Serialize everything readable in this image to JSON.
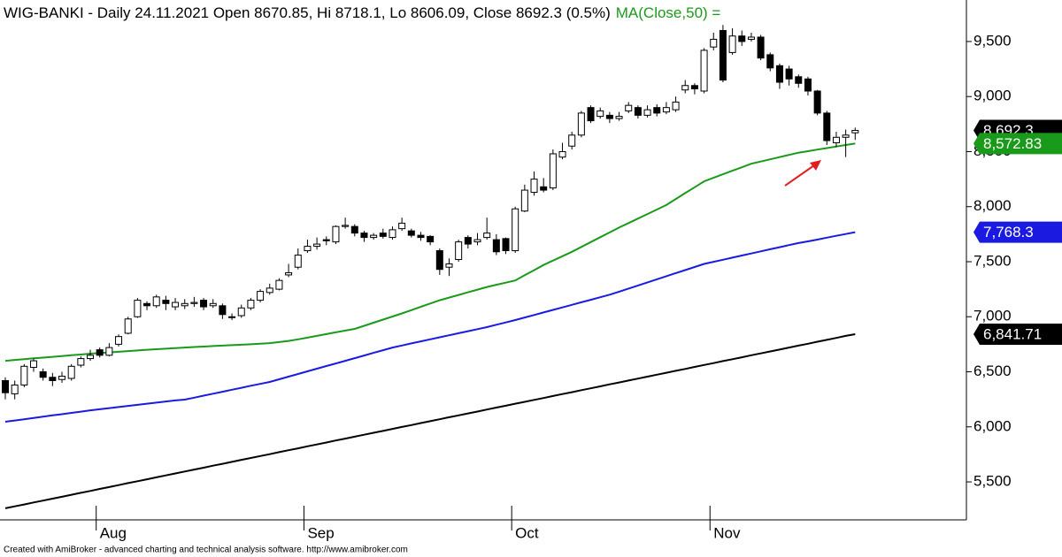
{
  "chart_data": {
    "type": "candlestick",
    "title": "WIG-BANKI - Daily 24.11.2021 Open 8670.85, Hi 8718.1, Lo 8606.09, Close 8692.3 (0.5%)",
    "title_ma": "MA(Close,50) =",
    "footer": "Created with AmiBroker - advanced charting and technical analysis software. http://www.amibroker.com",
    "categories": [
      null,
      null,
      null,
      null,
      null,
      null,
      null,
      null,
      null,
      null,
      "Aug",
      null,
      null,
      null,
      null,
      null,
      null,
      null,
      null,
      null,
      null,
      null,
      null,
      null,
      null,
      null,
      null,
      null,
      null,
      null,
      null,
      null,
      "Sep",
      null,
      null,
      null,
      null,
      null,
      null,
      null,
      null,
      null,
      null,
      null,
      null,
      null,
      null,
      null,
      null,
      null,
      null,
      null,
      null,
      null,
      "Oct",
      null,
      null,
      null,
      null,
      null,
      null,
      null,
      null,
      null,
      null,
      null,
      null,
      null,
      null,
      null,
      null,
      null,
      null,
      null,
      null,
      "Nov",
      null,
      null,
      null,
      null,
      null,
      null,
      null,
      null,
      null,
      null,
      null,
      null,
      null,
      null,
      null
    ],
    "open": [
      6420,
      6300,
      6380,
      6540,
      6500,
      6450,
      6430,
      6440,
      6560,
      6620,
      6700,
      6650,
      6750,
      6850,
      7000,
      7120,
      7100,
      7150,
      7090,
      7100,
      7120,
      7150,
      7100,
      7100,
      7000,
      7010,
      7080,
      7150,
      7220,
      7250,
      7380,
      7450,
      7600,
      7640,
      7700,
      7680,
      7820,
      7820,
      7760,
      7720,
      7760,
      7720,
      7800,
      7780,
      7740,
      7730,
      7600,
      7450,
      7520,
      7720,
      7680,
      7720,
      7700,
      7710,
      7600,
      7960,
      8130,
      8180,
      8170,
      8450,
      8550,
      8650,
      8900,
      8820,
      8830,
      8800,
      8870,
      8900,
      8830,
      8900,
      8860,
      8880,
      9060,
      9100,
      9050,
      9450,
      9600,
      9400,
      9550,
      9520,
      9540,
      9380,
      9280,
      9250,
      9180,
      9160,
      9050,
      8850,
      8580,
      8630,
      8670.85
    ],
    "high": [
      6450,
      6420,
      6570,
      6620,
      6530,
      6490,
      6500,
      6570,
      6640,
      6700,
      6720,
      6760,
      6840,
      7000,
      7170,
      7140,
      7200,
      7190,
      7170,
      7160,
      7180,
      7170,
      7160,
      7120,
      7030,
      7110,
      7170,
      7250,
      7300,
      7350,
      7480,
      7620,
      7700,
      7720,
      7730,
      7830,
      7900,
      7840,
      7780,
      7760,
      7800,
      7820,
      7900,
      7800,
      7770,
      7740,
      7620,
      7530,
      7700,
      7740,
      7760,
      7900,
      7750,
      7720,
      8000,
      8200,
      8320,
      8260,
      8520,
      8580,
      8680,
      8870,
      8920,
      8900,
      8860,
      8860,
      8950,
      8920,
      8920,
      8930,
      8950,
      9000,
      9150,
      9120,
      9440,
      9580,
      9650,
      9620,
      9600,
      9580,
      9560,
      9400,
      9300,
      9280,
      9200,
      9180,
      9060,
      8870,
      8680,
      8700,
      8718.1
    ],
    "low": [
      6250,
      6250,
      6360,
      6500,
      6420,
      6370,
      6400,
      6420,
      6540,
      6600,
      6630,
      6640,
      6730,
      6840,
      6990,
      7060,
      7080,
      7060,
      7060,
      7070,
      7090,
      7060,
      7080,
      6980,
      6970,
      6990,
      7060,
      7130,
      7200,
      7240,
      7360,
      7430,
      7580,
      7610,
      7650,
      7660,
      7800,
      7730,
      7680,
      7700,
      7710,
      7700,
      7780,
      7720,
      7690,
      7650,
      7380,
      7370,
      7500,
      7620,
      7650,
      7700,
      7560,
      7570,
      7580,
      7950,
      8100,
      8130,
      8150,
      8430,
      8520,
      8630,
      8760,
      8800,
      8760,
      8780,
      8850,
      8800,
      8810,
      8820,
      8840,
      8860,
      9030,
      9020,
      9030,
      9420,
      9130,
      9380,
      9460,
      9500,
      9330,
      9230,
      9070,
      9100,
      9080,
      9010,
      8830,
      8560,
      8540,
      8450,
      8606.09
    ],
    "close": [
      6310,
      6380,
      6550,
      6600,
      6450,
      6420,
      6460,
      6550,
      6620,
      6650,
      6650,
      6720,
      6820,
      6980,
      7150,
      7100,
      7180,
      7120,
      7130,
      7120,
      7130,
      7090,
      7120,
      7020,
      7000,
      7080,
      7150,
      7230,
      7260,
      7330,
      7400,
      7560,
      7640,
      7660,
      7690,
      7820,
      7830,
      7760,
      7720,
      7740,
      7730,
      7790,
      7850,
      7740,
      7720,
      7680,
      7430,
      7480,
      7680,
      7660,
      7700,
      7760,
      7590,
      7600,
      7980,
      8150,
      8250,
      8150,
      8480,
      8500,
      8650,
      8850,
      8780,
      8870,
      8800,
      8820,
      8920,
      8830,
      8880,
      8850,
      8900,
      8950,
      9100,
      9070,
      9420,
      9520,
      9150,
      9550,
      9500,
      9540,
      9350,
      9260,
      9130,
      9160,
      9120,
      9050,
      8850,
      8600,
      8630,
      8650,
      8692.3
    ],
    "close_label": "8,692.3",
    "up_color": "#ffffff",
    "down_color": "#000000",
    "series": [
      {
        "color": "#1a9a1a",
        "last_label": "8,572.83",
        "values": [
          6600,
          6608,
          6615,
          6622,
          6629,
          6636,
          6643,
          6650,
          6657,
          6665,
          6670,
          6676,
          6682,
          6688,
          6694,
          6700,
          6705,
          6710,
          6715,
          6720,
          6725,
          6729,
          6734,
          6738,
          6742,
          6746,
          6750,
          6755,
          6760,
          6770,
          6780,
          6795,
          6810,
          6826,
          6842,
          6858,
          6874,
          6890,
          6918,
          6946,
          6974,
          7002,
          7030,
          7060,
          7090,
          7120,
          7150,
          7174,
          7198,
          7222,
          7246,
          7270,
          7290,
          7310,
          7330,
          7377,
          7423,
          7470,
          7510,
          7550,
          7590,
          7634,
          7678,
          7722,
          7766,
          7810,
          7851,
          7892,
          7933,
          7974,
          8015,
          8069,
          8123,
          8176,
          8230,
          8262,
          8294,
          8326,
          8358,
          8390,
          8410,
          8430,
          8450,
          8470,
          8490,
          8504,
          8518,
          8532,
          8546,
          8560,
          8572.83
        ]
      },
      {
        "color": "#1a1ae0",
        "last_label": "7,768.3",
        "values": [
          6046,
          6058,
          6069,
          6081,
          6092,
          6104,
          6115,
          6127,
          6138,
          6150,
          6160,
          6170,
          6180,
          6190,
          6200,
          6210,
          6220,
          6230,
          6240,
          6247,
          6265,
          6283,
          6301,
          6319,
          6337,
          6355,
          6373,
          6390,
          6408,
          6432,
          6456,
          6480,
          6504,
          6528,
          6552,
          6576,
          6600,
          6624,
          6648,
          6672,
          6696,
          6720,
          6739,
          6758,
          6776,
          6795,
          6813,
          6832,
          6850,
          6869,
          6887,
          6906,
          6927,
          6948,
          6970,
          6993,
          7016,
          7039,
          7062,
          7085,
          7108,
          7131,
          7154,
          7177,
          7200,
          7228,
          7256,
          7284,
          7312,
          7340,
          7368,
          7396,
          7424,
          7452,
          7480,
          7499,
          7518,
          7537,
          7556,
          7575,
          7594,
          7613,
          7632,
          7651,
          7669,
          7685,
          7701,
          7718,
          7735,
          7751,
          7768.3
        ]
      },
      {
        "color": "#000000",
        "last_label": "6,841.71",
        "values": [
          5260,
          5278,
          5295,
          5313,
          5330,
          5348,
          5365,
          5383,
          5401,
          5418,
          5436,
          5453,
          5471,
          5489,
          5506,
          5524,
          5541,
          5559,
          5577,
          5594,
          5612,
          5629,
          5647,
          5664,
          5682,
          5700,
          5717,
          5735,
          5752,
          5770,
          5788,
          5805,
          5823,
          5840,
          5858,
          5876,
          5893,
          5911,
          5928,
          5946,
          5963,
          5981,
          5999,
          6016,
          6034,
          6051,
          6069,
          6087,
          6104,
          6122,
          6139,
          6157,
          6175,
          6192,
          6210,
          6227,
          6245,
          6262,
          6280,
          6298,
          6315,
          6333,
          6350,
          6368,
          6386,
          6403,
          6421,
          6438,
          6456,
          6474,
          6491,
          6509,
          6526,
          6544,
          6562,
          6579,
          6597,
          6614,
          6632,
          6650,
          6667,
          6685,
          6702,
          6720,
          6738,
          6755,
          6773,
          6790,
          6808,
          6826,
          6841.71
        ]
      }
    ],
    "ylim": [
      5155,
      9877
    ],
    "yticks": [
      {
        "value": 5500,
        "label": "5,500"
      },
      {
        "value": 6000,
        "label": "6,000"
      },
      {
        "value": 6500,
        "label": "6,500"
      },
      {
        "value": 7000,
        "label": "7,000"
      },
      {
        "value": 7500,
        "label": "7,500"
      },
      {
        "value": 8000,
        "label": "8,000"
      },
      {
        "value": 8500,
        "label": "8,500"
      },
      {
        "value": 9000,
        "label": "9,000"
      },
      {
        "value": 9500,
        "label": "9,500"
      }
    ]
  }
}
